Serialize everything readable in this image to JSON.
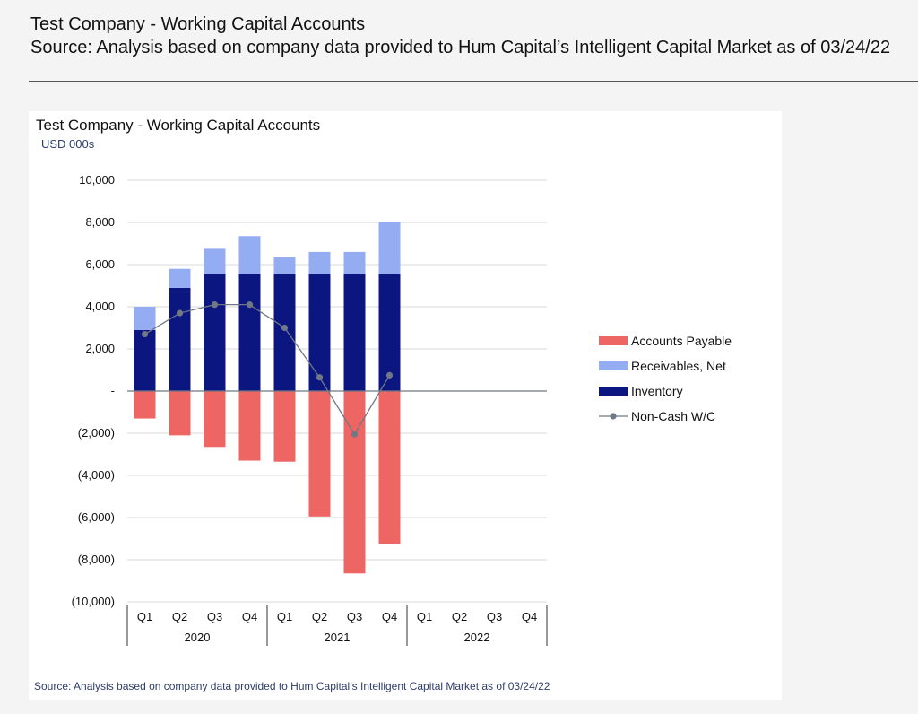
{
  "header": {
    "title": "Test Company - Working Capital Accounts",
    "source": "Source: Analysis based on company data provided to Hum Capital’s Intelligent Capital Market as of 03/24/22"
  },
  "chart_data": {
    "type": "bar",
    "stacked": true,
    "title": "Test Company - Working Capital Accounts",
    "subtitle": "USD 000s",
    "footnote": "Source: Analysis based on company data provided to Hum Capital’s Intelligent Capital Market as of 03/24/22",
    "categories": [
      "Q1",
      "Q2",
      "Q3",
      "Q4",
      "Q1",
      "Q2",
      "Q3",
      "Q4",
      "Q1",
      "Q2",
      "Q3",
      "Q4"
    ],
    "groups": [
      {
        "label": "2020",
        "count": 4
      },
      {
        "label": "2021",
        "count": 4
      },
      {
        "label": "2022",
        "count": 4
      }
    ],
    "ylim": [
      -10000,
      10000
    ],
    "yticks": [
      10000,
      8000,
      6000,
      4000,
      2000,
      0,
      -2000,
      -4000,
      -6000,
      -8000,
      -10000
    ],
    "ytick_labels": [
      "10,000",
      "8,000",
      "6,000",
      "4,000",
      "2,000",
      "-",
      "(2,000)",
      "(4,000)",
      "(6,000)",
      "(8,000)",
      "(10,000)"
    ],
    "grid": true,
    "legend_position": "right",
    "series": [
      {
        "name": "Accounts Payable",
        "kind": "bar",
        "color": "#ee6663",
        "values": [
          -1300,
          -2100,
          -2650,
          -3300,
          -3350,
          -5950,
          -8650,
          -7250,
          null,
          null,
          null,
          null
        ]
      },
      {
        "name": "Receivables, Net",
        "kind": "bar",
        "color": "#93acf2",
        "values": [
          1100,
          900,
          1200,
          1800,
          800,
          1050,
          1050,
          2450,
          null,
          null,
          null,
          null
        ]
      },
      {
        "name": "Inventory",
        "kind": "bar",
        "color": "#0c1680",
        "values": [
          2900,
          4900,
          5550,
          5550,
          5550,
          5550,
          5550,
          5550,
          null,
          null,
          null,
          null
        ]
      },
      {
        "name": "Non-Cash W/C",
        "kind": "line",
        "color": "#6f7884",
        "values": [
          2700,
          3700,
          4100,
          4100,
          3000,
          650,
          -2050,
          750,
          null,
          null,
          null,
          null
        ]
      }
    ],
    "legend_order": [
      "Accounts Payable",
      "Receivables, Net",
      "Inventory",
      "Non-Cash W/C"
    ]
  }
}
